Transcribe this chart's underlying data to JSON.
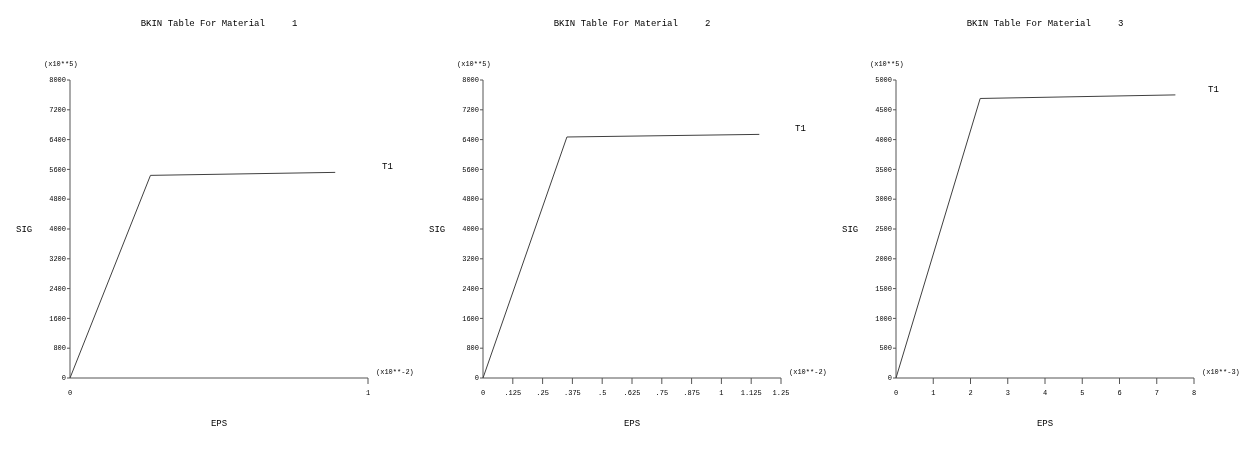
{
  "chart_data": [
    {
      "type": "line",
      "title": "BKIN Table For Material     1",
      "xlabel": "EPS",
      "ylabel": "SIG",
      "annotations": [
        "(x10**5)",
        "(x10**-2)"
      ],
      "x": [
        0,
        0.27,
        0.89
      ],
      "series": [
        {
          "name": "T1",
          "color": "#404040",
          "values": [
            0,
            5440,
            5520
          ]
        }
      ],
      "xlim": [
        0,
        1
      ],
      "xticks": [
        0,
        1
      ],
      "ylim": [
        0,
        8000
      ],
      "yticks": [
        0,
        800,
        1600,
        2400,
        3200,
        4000,
        4800,
        5600,
        6400,
        7200,
        8000
      ],
      "grid": false,
      "marker": "none",
      "line_style": "solid"
    },
    {
      "type": "line",
      "title": "BKIN Table For Material     2",
      "xlabel": "EPS",
      "ylabel": "SIG",
      "annotations": [
        "(x10**5)",
        "(x10**-2)"
      ],
      "x": [
        0,
        0.352,
        1.159
      ],
      "series": [
        {
          "name": "T1",
          "color": "#404040",
          "values": [
            0,
            6470,
            6540
          ]
        }
      ],
      "xlim": [
        0,
        1.25
      ],
      "xticks": [
        0,
        {
          "value": 0.125,
          "label": ".125"
        },
        {
          "value": 0.25,
          "label": ".25"
        },
        {
          "value": 0.375,
          "label": ".375"
        },
        {
          "value": 0.5,
          "label": ".5"
        },
        {
          "value": 0.625,
          "label": ".625"
        },
        {
          "value": 0.75,
          "label": ".75"
        },
        {
          "value": 0.875,
          "label": ".875"
        },
        1,
        1.125,
        1.25
      ],
      "ylim": [
        0,
        8000
      ],
      "yticks": [
        0,
        800,
        1600,
        2400,
        3200,
        4000,
        4800,
        5600,
        6400,
        7200,
        8000
      ],
      "grid": false,
      "marker": "none",
      "line_style": "solid"
    },
    {
      "type": "line",
      "title": "BKIN Table For Material     3",
      "xlabel": "EPS",
      "ylabel": "SIG",
      "annotations": [
        "(x10**5)",
        "(x10**-3)"
      ],
      "x": [
        0,
        2.26,
        7.5
      ],
      "series": [
        {
          "name": "T1",
          "color": "#404040",
          "values": [
            0,
            4690,
            4750
          ]
        }
      ],
      "xlim": [
        0,
        8
      ],
      "xticks": [
        0,
        1,
        2,
        3,
        4,
        5,
        6,
        7,
        8
      ],
      "ylim": [
        0,
        5000
      ],
      "yticks": [
        0,
        500,
        1000,
        1500,
        2000,
        2500,
        3000,
        3500,
        4000,
        4500,
        5000
      ],
      "grid": false,
      "marker": "none",
      "line_style": "solid"
    }
  ]
}
